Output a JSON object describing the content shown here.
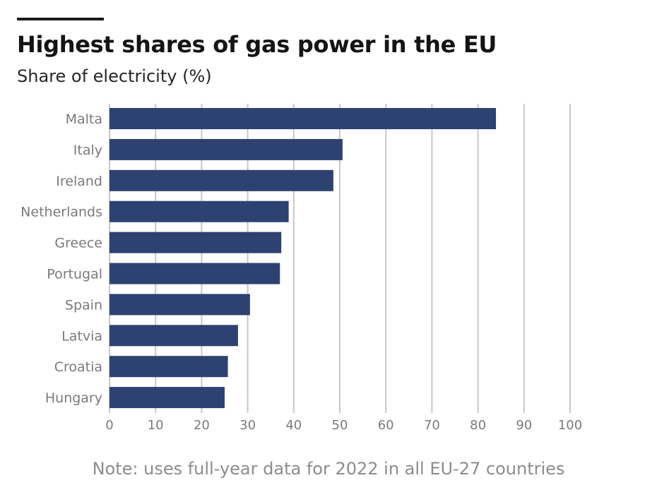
{
  "header": {
    "title": "Highest shares of gas power in the EU",
    "subtitle": "Share of electricity (%)"
  },
  "footer": {
    "note": "Note: uses full-year data for 2022 in all EU-27 countries"
  },
  "colors": {
    "bar": "#2d4270",
    "grid": "#c8c8c8",
    "label": "#7a7a7a"
  },
  "chart_data": {
    "type": "bar",
    "orientation": "horizontal",
    "title": "Highest shares of gas power in the EU",
    "subtitle": "Share of electricity (%)",
    "categories": [
      "Malta",
      "Italy",
      "Ireland",
      "Netherlands",
      "Greece",
      "Portugal",
      "Spain",
      "Latvia",
      "Croatia",
      "Hungary"
    ],
    "values": [
      83.9,
      50.6,
      48.6,
      38.9,
      37.3,
      37.0,
      30.5,
      27.9,
      25.7,
      25.0
    ],
    "xlim": [
      0,
      100
    ],
    "xticks": [
      0,
      10,
      20,
      30,
      40,
      50,
      60,
      70,
      80,
      90,
      100
    ],
    "grid": true
  }
}
